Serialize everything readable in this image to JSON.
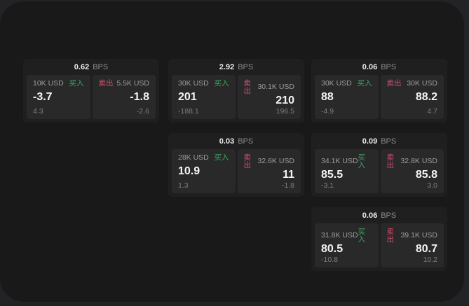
{
  "labels": {
    "bps_unit": "BPS",
    "buy": "买入",
    "sell": "卖出"
  },
  "colors": {
    "buy_green": "#3ea463",
    "sell_red": "#cf4f6e",
    "outer_background": "#232326",
    "window_background": "#19191a",
    "card_background": "#1f1f20",
    "panel_background": "#29292a"
  },
  "cards": [
    {
      "bps": "0.62",
      "col": 0,
      "row": 0,
      "buy": {
        "amount": "10K USD",
        "price": "-3.7",
        "change": "4.3"
      },
      "sell": {
        "amount": "5.5K USD",
        "price": "-1.8",
        "change": "-2.6"
      }
    },
    {
      "bps": "2.92",
      "col": 1,
      "row": 0,
      "buy": {
        "amount": "30K USD",
        "price": "201",
        "change": "-188.1"
      },
      "sell": {
        "amount": "30.1K USD",
        "price": "210",
        "change": "196.5"
      }
    },
    {
      "bps": "0.06",
      "col": 2,
      "row": 0,
      "buy": {
        "amount": "30K USD",
        "price": "88",
        "change": "-4.9"
      },
      "sell": {
        "amount": "30K USD",
        "price": "88.2",
        "change": "4.7"
      }
    },
    {
      "bps": "0.03",
      "col": 1,
      "row": 1,
      "buy": {
        "amount": "28K USD",
        "price": "10.9",
        "change": "1.3"
      },
      "sell": {
        "amount": "32.6K USD",
        "price": "11",
        "change": "-1.8"
      }
    },
    {
      "bps": "0.09",
      "col": 2,
      "row": 1,
      "buy": {
        "amount": "34.1K USD",
        "price": "85.5",
        "change": "-3.1"
      },
      "sell": {
        "amount": "32.8K USD",
        "price": "85.8",
        "change": "3.0"
      }
    },
    {
      "bps": "0.06",
      "col": 2,
      "row": 2,
      "buy": {
        "amount": "31.8K USD",
        "price": "80.5",
        "change": "-10.8"
      },
      "sell": {
        "amount": "39.1K USD",
        "price": "80.7",
        "change": "10.2"
      }
    }
  ]
}
